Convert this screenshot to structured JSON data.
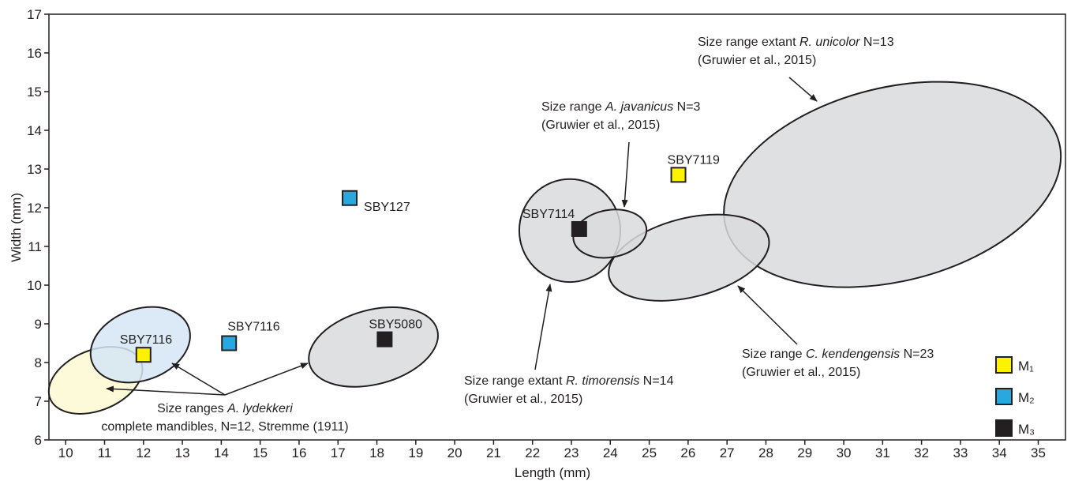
{
  "chart_data": {
    "type": "scatter",
    "xlabel": "Length (mm)",
    "ylabel": "Width (mm)",
    "xlim": [
      9.57,
      35.7
    ],
    "ylim": [
      6,
      17
    ],
    "xticks": [
      10,
      11,
      12,
      13,
      14,
      15,
      16,
      17,
      18,
      19,
      20,
      21,
      22,
      23,
      24,
      25,
      26,
      27,
      28,
      29,
      30,
      31,
      32,
      33,
      34,
      35
    ],
    "yticks": [
      6,
      7,
      8,
      9,
      10,
      11,
      12,
      13,
      14,
      15,
      16,
      17
    ],
    "regions": [
      {
        "cx": 31.25,
        "cy": 12.6,
        "rx": 4.42,
        "ry": 2.5,
        "color": "#d9dadc"
      },
      {
        "cx": 26.02,
        "cy": 10.71,
        "rx": 2.11,
        "ry": 1.02,
        "color": "#d9dadc"
      },
      {
        "cx": 22.96,
        "cy": 11.41,
        "rx": 1.3,
        "ry": 1.33,
        "color": "#d9dadc"
      },
      {
        "cx": 23.99,
        "cy": 11.33,
        "rx": 0.95,
        "ry": 0.61,
        "color": "#d9dadc"
      },
      {
        "cx": 17.91,
        "cy": 8.4,
        "rx": 1.7,
        "ry": 0.96,
        "color": "#d9dadc"
      },
      {
        "cx": 10.77,
        "cy": 7.54,
        "rx": 1.26,
        "ry": 0.78,
        "color": "#fdf9d3"
      },
      {
        "cx": 11.92,
        "cy": 8.46,
        "rx": 1.32,
        "ry": 0.92,
        "color": "#d5e6f5"
      }
    ],
    "series": [
      {
        "name": "M₁",
        "color": "#fff200",
        "x": [
          12.0,
          25.75
        ],
        "y": [
          8.2,
          12.85
        ],
        "labels": [
          "SBY7116",
          "SBY7119"
        ]
      },
      {
        "name": "M₂",
        "color": "#29a8e0",
        "x": [
          14.2,
          17.3
        ],
        "y": [
          8.5,
          12.25
        ],
        "labels": [
          "SBY7116",
          "SBY127"
        ]
      },
      {
        "name": "M₃",
        "color": "#231f20",
        "x": [
          18.2,
          23.2
        ],
        "y": [
          8.6,
          11.45
        ],
        "labels": [
          "SBY5080",
          "SBY7114"
        ]
      }
    ],
    "annotations": [
      {
        "lines": [
          [
            {
              "text": "Size range extant "
            },
            {
              "text": "R. unicolor",
              "italic": true
            },
            {
              "text": " N=13"
            }
          ],
          [
            {
              "text": "(Gruwier et al., 2015)"
            }
          ]
        ]
      },
      {
        "lines": [
          [
            {
              "text": "Size range "
            },
            {
              "text": "A. javanicus",
              "italic": true
            },
            {
              "text": " N=3"
            }
          ],
          [
            {
              "text": "(Gruwier et al., 2015)"
            }
          ]
        ]
      },
      {
        "lines": [
          [
            {
              "text": "Size range extant "
            },
            {
              "text": "R. timorensis",
              "italic": true
            },
            {
              "text": " N=14"
            }
          ],
          [
            {
              "text": "(Gruwier et al., 2015)"
            }
          ]
        ]
      },
      {
        "lines": [
          [
            {
              "text": "Size range "
            },
            {
              "text": "C. kendengensis",
              "italic": true
            },
            {
              "text": " N=23"
            }
          ],
          [
            {
              "text": "(Gruwier et al., 2015)"
            }
          ]
        ]
      },
      {
        "lines": [
          [
            {
              "text": "Size ranges "
            },
            {
              "text": "A. lydekkeri",
              "italic": true
            }
          ],
          [
            {
              "text": "complete mandibles, N=12, Stremme (1911)"
            }
          ]
        ]
      }
    ]
  }
}
